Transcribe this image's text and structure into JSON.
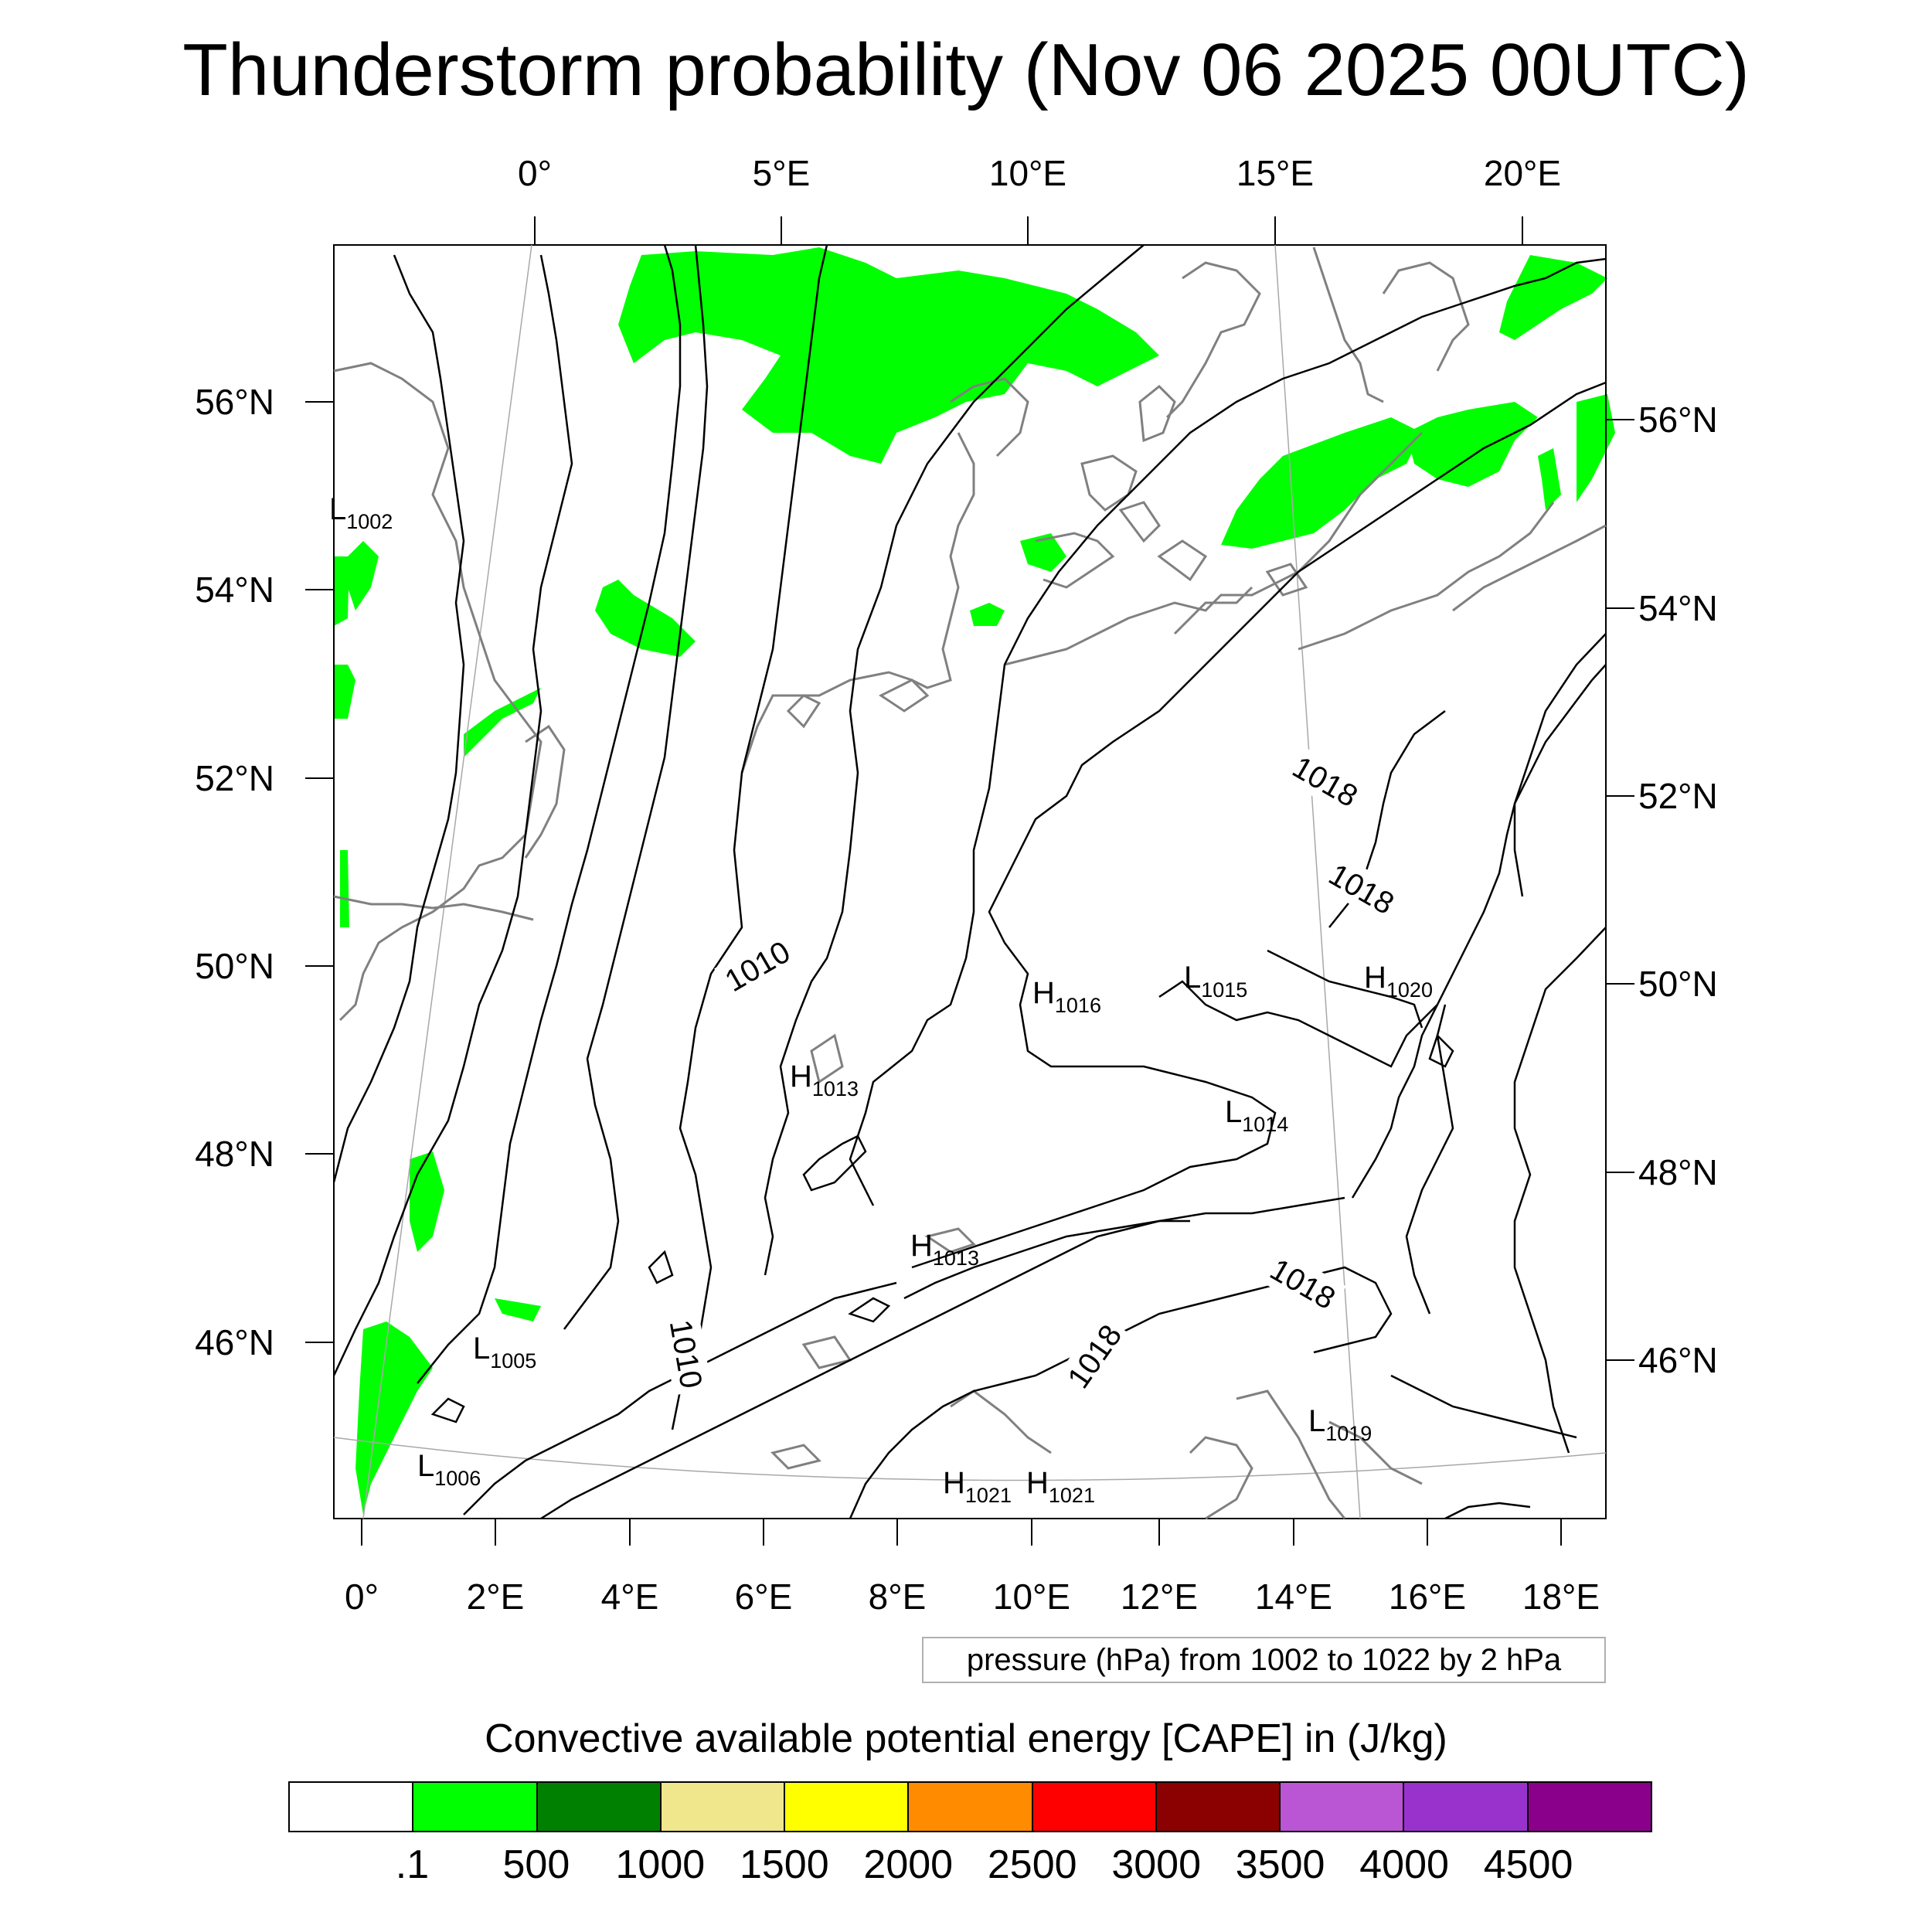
{
  "title": "Thunderstorm probability (Nov 06 2025 00UTC)",
  "map": {
    "top_lon_labels": [
      "0°",
      "5°E",
      "10°E",
      "15°E",
      "20°E"
    ],
    "bottom_lon_labels": [
      "0°",
      "2°E",
      "4°E",
      "6°E",
      "8°E",
      "10°E",
      "12°E",
      "14°E",
      "16°E",
      "18°E"
    ],
    "left_lat_labels": [
      "56°N",
      "54°N",
      "52°N",
      "50°N",
      "48°N",
      "46°N"
    ],
    "right_lat_labels": [
      "56°N",
      "54°N",
      "52°N",
      "50°N",
      "48°N",
      "46°N"
    ],
    "pressure_centers": [
      {
        "type": "L",
        "value": "1002"
      },
      {
        "type": "L",
        "value": "1005"
      },
      {
        "type": "L",
        "value": "1006"
      },
      {
        "type": "H",
        "value": "1013"
      },
      {
        "type": "H",
        "value": "1013"
      },
      {
        "type": "H",
        "value": "1016"
      },
      {
        "type": "L",
        "value": "1015"
      },
      {
        "type": "H",
        "value": "1020"
      },
      {
        "type": "L",
        "value": "1014"
      },
      {
        "type": "L",
        "value": "1019"
      },
      {
        "type": "H",
        "value": "1021"
      },
      {
        "type": "H",
        "value": "1021"
      }
    ],
    "contour_labels": [
      "1010",
      "1010",
      "1018",
      "1018",
      "1018",
      "1018"
    ],
    "contour_color": "#000000",
    "coastline_color": "#808080",
    "cape_fill_color": "#00ff00"
  },
  "pressure_note": "pressure (hPa) from 1002 to 1022 by 2 hPa",
  "legend": {
    "title": "Convective available potential energy [CAPE] in (J/kg)",
    "colors": [
      "#ffffff",
      "#00ff00",
      "#008000",
      "#f0e68c",
      "#ffff00",
      "#ff8c00",
      "#ff0000",
      "#8b0000",
      "#ba55d3",
      "#9932cc",
      "#8b008b"
    ],
    "labels": [
      ".1",
      "500",
      "1000",
      "1500",
      "2000",
      "2500",
      "3000",
      "3500",
      "4000",
      "4500"
    ]
  }
}
